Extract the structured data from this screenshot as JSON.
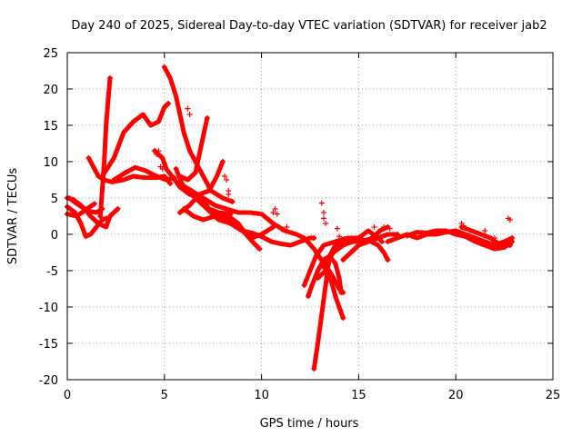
{
  "chart_data": {
    "type": "scatter",
    "title": "Day 240 of 2025, Sidereal Day-to-day VTEC variation (SDTVAR) for receiver jab2",
    "xlabel": "GPS time / hours",
    "ylabel": "SDTVAR / TECUs",
    "xlim": [
      0,
      25
    ],
    "ylim": [
      -20,
      25
    ],
    "xticks": [
      "0",
      "5",
      "10",
      "15",
      "20",
      "25"
    ],
    "yticks": [
      "25",
      "20",
      "15",
      "10",
      "5",
      "0",
      "-5",
      "-10",
      "-15",
      "-20"
    ],
    "xtick_values": [
      0,
      5,
      10,
      15,
      20,
      25
    ],
    "ytick_values": [
      25,
      20,
      15,
      10,
      5,
      0,
      -5,
      -10,
      -15,
      -20
    ],
    "grid": true,
    "marker": "plus",
    "color": "#ff0000",
    "series": [
      {
        "name": "arc-01",
        "points": [
          [
            0,
            5
          ],
          [
            0.3,
            4.8
          ],
          [
            0.6,
            4.2
          ],
          [
            0.9,
            3.5
          ],
          [
            1.2,
            2.5
          ],
          [
            1.6,
            1.5
          ],
          [
            2.0,
            1.0
          ],
          [
            2.2,
            2.5
          ],
          [
            2.6,
            3.5
          ]
        ]
      },
      {
        "name": "arc-02",
        "points": [
          [
            0,
            3.8
          ],
          [
            0.4,
            3.0
          ],
          [
            0.7,
            1.5
          ],
          [
            0.95,
            -0.3
          ],
          [
            1.2,
            0.0
          ],
          [
            1.5,
            1.0
          ],
          [
            1.8,
            2.0
          ],
          [
            2.0,
            2.2
          ]
        ]
      },
      {
        "name": "arc-03",
        "points": [
          [
            0.1,
            5.0
          ],
          [
            0.6,
            4.0
          ],
          [
            1.1,
            3.2
          ],
          [
            1.5,
            3.0
          ],
          [
            1.8,
            3.5
          ]
        ]
      },
      {
        "name": "arc-04",
        "points": [
          [
            0,
            2.8
          ],
          [
            0.5,
            2.5
          ],
          [
            1.0,
            3.5
          ],
          [
            1.4,
            4.2
          ]
        ]
      },
      {
        "name": "arc-05",
        "points": [
          [
            1.1,
            10.5
          ],
          [
            1.3,
            9.5
          ],
          [
            1.6,
            8.0
          ],
          [
            1.9,
            7.5
          ],
          [
            2.3,
            7.2
          ],
          [
            2.9,
            7.5
          ],
          [
            3.4,
            8.0
          ],
          [
            4.0,
            7.8
          ],
          [
            4.6,
            7.8
          ],
          [
            5.0,
            8.0
          ],
          [
            5.3,
            7.0
          ]
        ]
      },
      {
        "name": "arc-06",
        "points": [
          [
            1.7,
            2.5
          ],
          [
            1.8,
            6.0
          ],
          [
            1.9,
            10.0
          ],
          [
            2.0,
            15.0
          ],
          [
            2.1,
            18.5
          ],
          [
            2.2,
            21.5
          ]
        ]
      },
      {
        "name": "arc-07",
        "points": [
          [
            1.8,
            8.0
          ],
          [
            2.4,
            10.5
          ],
          [
            2.9,
            14.0
          ],
          [
            3.4,
            15.5
          ],
          [
            3.9,
            16.5
          ],
          [
            4.3,
            15.0
          ],
          [
            4.7,
            15.5
          ],
          [
            5.0,
            17.5
          ],
          [
            5.2,
            18.0
          ]
        ]
      },
      {
        "name": "arc-08",
        "points": [
          [
            2.4,
            7.5
          ],
          [
            3.0,
            8.5
          ],
          [
            3.5,
            9.2
          ],
          [
            4.0,
            8.8
          ],
          [
            4.6,
            8.0
          ],
          [
            5.1,
            7.5
          ],
          [
            5.5,
            7.8
          ]
        ]
      },
      {
        "name": "arc-09",
        "points": [
          [
            4.5,
            11.5
          ],
          [
            4.9,
            10.5
          ],
          [
            5.1,
            9.0
          ],
          [
            5.4,
            8.0
          ],
          [
            5.8,
            6.5
          ],
          [
            6.3,
            5.5
          ],
          [
            6.9,
            5.0
          ],
          [
            7.3,
            3.5
          ],
          [
            7.8,
            3.0
          ],
          [
            8.4,
            2.8
          ]
        ]
      },
      {
        "name": "arc-10",
        "points": [
          [
            5.0,
            23.0
          ],
          [
            5.3,
            21.5
          ],
          [
            5.6,
            19.0
          ],
          [
            5.8,
            16.5
          ],
          [
            6.0,
            14.0
          ],
          [
            6.3,
            11.5
          ],
          [
            6.6,
            10.0
          ],
          [
            7.0,
            8.0
          ],
          [
            7.4,
            6.0
          ],
          [
            8.0,
            5.0
          ],
          [
            8.5,
            4.5
          ]
        ]
      },
      {
        "name": "arc-11",
        "points": [
          [
            5.6,
            9.0
          ],
          [
            5.9,
            7.0
          ],
          [
            6.2,
            6.0
          ],
          [
            6.6,
            5.0
          ],
          [
            7.2,
            3.5
          ],
          [
            7.8,
            2.0
          ],
          [
            8.4,
            1.5
          ],
          [
            9.0,
            0.5
          ],
          [
            9.5,
            -0.5
          ],
          [
            10.0,
            0.0
          ],
          [
            10.6,
            1.0
          ]
        ]
      },
      {
        "name": "arc-12",
        "points": [
          [
            5.8,
            3.0
          ],
          [
            6.3,
            4.0
          ],
          [
            6.8,
            5.5
          ],
          [
            7.3,
            6.0
          ],
          [
            7.7,
            8.0
          ],
          [
            8.0,
            10.0
          ]
        ]
      },
      {
        "name": "arc-13",
        "points": [
          [
            5.8,
            8.0
          ],
          [
            6.2,
            7.5
          ],
          [
            6.6,
            8.5
          ],
          [
            6.8,
            11.0
          ],
          [
            7.0,
            13.5
          ],
          [
            7.2,
            16.0
          ]
        ]
      },
      {
        "name": "arc-14",
        "points": [
          [
            6.0,
            3.5
          ],
          [
            6.5,
            2.5
          ],
          [
            7.0,
            2.0
          ],
          [
            7.6,
            2.5
          ],
          [
            8.3,
            2.5
          ],
          [
            8.8,
            1.5
          ],
          [
            9.2,
            0.0
          ],
          [
            9.6,
            -1.2
          ],
          [
            9.9,
            -2.0
          ]
        ]
      },
      {
        "name": "arc-15",
        "points": [
          [
            5.9,
            6.8
          ],
          [
            6.4,
            6.0
          ],
          [
            7.0,
            5.0
          ],
          [
            7.6,
            4.0
          ],
          [
            8.2,
            3.5
          ],
          [
            8.8,
            3.0
          ],
          [
            9.4,
            3.0
          ],
          [
            10.0,
            2.8
          ],
          [
            10.6,
            1.5
          ],
          [
            11.2,
            0.5
          ],
          [
            11.8,
            0.0
          ],
          [
            12.2,
            -0.5
          ],
          [
            12.7,
            -2.0
          ],
          [
            13.2,
            -4.0
          ],
          [
            13.6,
            -5.5
          ],
          [
            14.0,
            -7.5
          ],
          [
            14.2,
            -8.0
          ]
        ]
      },
      {
        "name": "arc-16",
        "points": [
          [
            8.0,
            2.5
          ],
          [
            8.5,
            1.5
          ],
          [
            9.0,
            0.5
          ],
          [
            9.5,
            0.2
          ],
          [
            10.0,
            -0.3
          ],
          [
            10.5,
            -1.0
          ],
          [
            11.0,
            -1.3
          ],
          [
            11.5,
            -1.5
          ],
          [
            12.0,
            -1.0
          ],
          [
            12.5,
            -0.5
          ],
          [
            12.7,
            -0.5
          ]
        ]
      },
      {
        "name": "arc-17",
        "points": [
          [
            12.2,
            -7.0
          ],
          [
            12.5,
            -5.0
          ],
          [
            12.8,
            -3.0
          ],
          [
            13.2,
            -1.5
          ],
          [
            13.8,
            -1.0
          ],
          [
            14.4,
            -0.5
          ],
          [
            15.0,
            -0.5
          ],
          [
            15.5,
            0.5
          ],
          [
            16.0,
            -0.5
          ],
          [
            16.2,
            -1.0
          ]
        ]
      },
      {
        "name": "arc-18",
        "points": [
          [
            12.4,
            -8.5
          ],
          [
            12.6,
            -7.0
          ],
          [
            12.9,
            -5.0
          ],
          [
            13.2,
            -3.5
          ],
          [
            13.5,
            -3.0
          ],
          [
            13.8,
            -4.0
          ],
          [
            14.0,
            -6.0
          ],
          [
            14.1,
            -8.0
          ]
        ]
      },
      {
        "name": "arc-19",
        "points": [
          [
            12.9,
            -6.0
          ],
          [
            13.3,
            -5.0
          ],
          [
            13.6,
            -6.5
          ],
          [
            13.8,
            -8.5
          ],
          [
            14.0,
            -10.0
          ],
          [
            14.2,
            -11.5
          ]
        ]
      },
      {
        "name": "arc-20",
        "points": [
          [
            12.7,
            -18.5
          ],
          [
            12.9,
            -15.0
          ],
          [
            13.1,
            -11.0
          ],
          [
            13.3,
            -7.0
          ],
          [
            13.5,
            -3.0
          ],
          [
            13.8,
            -1.5
          ],
          [
            14.3,
            -1.0
          ]
        ]
      },
      {
        "name": "arc-21",
        "points": [
          [
            13.2,
            -4.5
          ],
          [
            13.7,
            -2.5
          ],
          [
            14.2,
            -1.5
          ],
          [
            14.7,
            -1.0
          ],
          [
            15.2,
            -1.0
          ],
          [
            15.7,
            -0.5
          ],
          [
            16.1,
            0.5
          ],
          [
            16.5,
            1.0
          ]
        ]
      },
      {
        "name": "arc-22",
        "points": [
          [
            14.2,
            -3.5
          ],
          [
            14.6,
            -2.5
          ],
          [
            15.0,
            -1.5
          ],
          [
            15.5,
            -1.0
          ],
          [
            16.0,
            -0.5
          ],
          [
            16.5,
            0.0
          ],
          [
            17.0,
            0.0
          ]
        ]
      },
      {
        "name": "arc-23",
        "points": [
          [
            14.5,
            -1.0
          ],
          [
            15.0,
            -0.8
          ],
          [
            15.5,
            -0.8
          ],
          [
            16.0,
            -1.5
          ],
          [
            16.3,
            -2.5
          ],
          [
            16.5,
            -3.5
          ]
        ]
      },
      {
        "name": "arc-24",
        "points": [
          [
            16.5,
            -1.0
          ],
          [
            17.0,
            -0.5
          ],
          [
            17.5,
            0.0
          ],
          [
            18.0,
            -0.5
          ],
          [
            18.5,
            0.0
          ],
          [
            19.0,
            0.0
          ],
          [
            19.5,
            0.3
          ],
          [
            20.0,
            0.5
          ],
          [
            20.5,
            0.0
          ],
          [
            21.0,
            -0.5
          ],
          [
            21.5,
            -1.0
          ],
          [
            22.0,
            -1.5
          ],
          [
            22.5,
            -1.0
          ],
          [
            22.9,
            -0.5
          ]
        ]
      },
      {
        "name": "arc-25",
        "points": [
          [
            17.5,
            -0.2
          ],
          [
            18.0,
            0.3
          ],
          [
            18.5,
            0.2
          ],
          [
            19.0,
            0.5
          ],
          [
            19.5,
            0.5
          ],
          [
            20.0,
            0.0
          ],
          [
            20.5,
            -0.3
          ],
          [
            21.0,
            -1.0
          ],
          [
            21.5,
            -1.5
          ],
          [
            22.0,
            -2.0
          ],
          [
            22.5,
            -1.8
          ],
          [
            22.9,
            -1.0
          ]
        ]
      },
      {
        "name": "arc-26",
        "points": [
          [
            20.3,
            1.0
          ],
          [
            20.8,
            0.5
          ],
          [
            21.3,
            0.0
          ],
          [
            21.8,
            -0.5
          ],
          [
            22.3,
            -1.5
          ],
          [
            22.8,
            -1.5
          ]
        ]
      }
    ],
    "isolated_points": [
      [
        4.6,
        11.0
      ],
      [
        4.7,
        11.5
      ],
      [
        4.8,
        9.3
      ],
      [
        4.9,
        9.0
      ],
      [
        6.2,
        17.3
      ],
      [
        6.3,
        16.5
      ],
      [
        8.1,
        8.0
      ],
      [
        8.2,
        7.5
      ],
      [
        8.3,
        6.0
      ],
      [
        8.3,
        5.5
      ],
      [
        10.6,
        3.0
      ],
      [
        10.7,
        3.5
      ],
      [
        10.8,
        2.8
      ],
      [
        11.3,
        1.0
      ],
      [
        13.1,
        4.3
      ],
      [
        13.2,
        3.0
      ],
      [
        13.2,
        2.2
      ],
      [
        13.3,
        1.5
      ],
      [
        13.9,
        0.8
      ],
      [
        14.0,
        -0.3
      ],
      [
        15.8,
        1.0
      ],
      [
        16.3,
        1.0
      ],
      [
        16.6,
        0.8
      ],
      [
        20.3,
        1.5
      ],
      [
        20.4,
        1.2
      ],
      [
        21.5,
        0.5
      ],
      [
        22.0,
        -0.5
      ],
      [
        22.7,
        2.2
      ],
      [
        22.8,
        2.0
      ]
    ]
  }
}
